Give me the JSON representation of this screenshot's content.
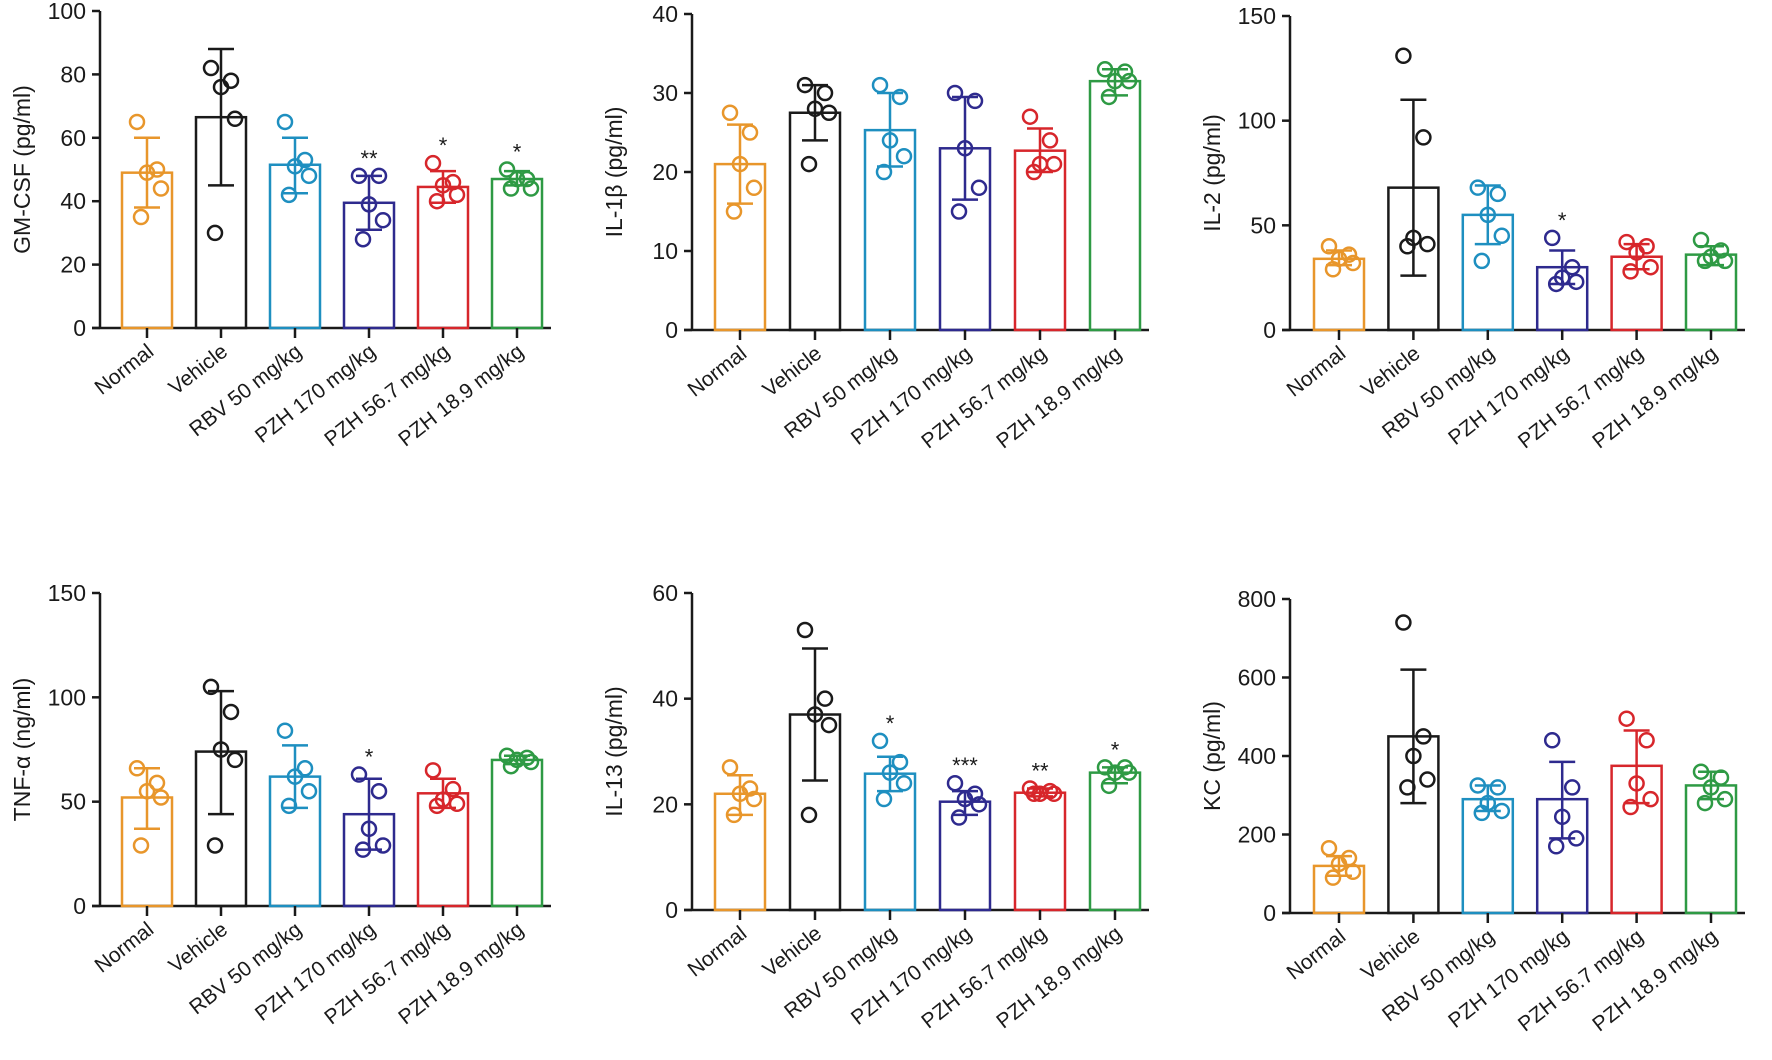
{
  "colors": [
    "#E8962B",
    "#1a1a1a",
    "#1E8FC0",
    "#2E2A8E",
    "#D7262B",
    "#2E9A44"
  ],
  "chart_data": [
    {
      "type": "bar",
      "title": "",
      "ylabel": "GM-CSF  (pg/ml)",
      "ylim": [
        0,
        100
      ],
      "yticks": [
        0,
        20,
        40,
        60,
        80,
        100
      ],
      "categories": [
        "Normal",
        "Vehicle",
        "RBV 50 mg/kg",
        "PZH 170 mg/kg",
        "PZH 56.7 mg/kg",
        "PZH 18.9 mg/kg"
      ],
      "means": [
        49,
        66.5,
        51.5,
        39.5,
        44.5,
        47
      ],
      "err_low": [
        38,
        45,
        42.5,
        31,
        39.5,
        45
      ],
      "err_high": [
        60,
        88,
        60,
        48,
        49.5,
        49.5
      ],
      "points": [
        [
          65,
          50,
          49,
          44,
          35
        ],
        [
          82,
          78,
          76,
          66,
          30
        ],
        [
          65,
          53,
          51,
          48,
          42
        ],
        [
          48,
          48,
          39,
          34,
          28
        ],
        [
          52,
          46,
          45,
          42,
          40
        ],
        [
          50,
          47,
          47,
          44,
          44
        ]
      ],
      "significance": [
        "",
        "",
        "",
        "**",
        "*",
        "*"
      ]
    },
    {
      "type": "bar",
      "title": "",
      "ylabel": "IL-1β  (pg/ml)",
      "ylim": [
        0,
        40
      ],
      "yticks": [
        0,
        10,
        20,
        30,
        40
      ],
      "categories": [
        "Normal",
        "Vehicle",
        "RBV 50 mg/kg",
        "PZH 170 mg/kg",
        "PZH 56.7 mg/kg",
        "PZH 18.9 mg/kg"
      ],
      "means": [
        21,
        27.5,
        25.3,
        23,
        22.7,
        31.5
      ],
      "err_low": [
        16,
        24,
        20.7,
        16.5,
        20,
        29.7
      ],
      "err_high": [
        26,
        31,
        30,
        29.5,
        25.5,
        33
      ],
      "points": [
        [
          27.5,
          25,
          21,
          18,
          15
        ],
        [
          31,
          30,
          28,
          27.5,
          21
        ],
        [
          31,
          29.5,
          24,
          22,
          20
        ],
        [
          30,
          29,
          23,
          18,
          15
        ],
        [
          27,
          24,
          21,
          21,
          20
        ],
        [
          33,
          32.7,
          31.5,
          31.5,
          29.5
        ]
      ],
      "significance": [
        "",
        "",
        "",
        "",
        "",
        ""
      ]
    },
    {
      "type": "bar",
      "title": "",
      "ylabel": "IL-2  (pg/ml)",
      "ylim": [
        0,
        150
      ],
      "yticks": [
        0,
        50,
        100,
        150
      ],
      "categories": [
        "Normal",
        "Vehicle",
        "RBV 50 mg/kg",
        "PZH 170 mg/kg",
        "PZH 56.7 mg/kg",
        "PZH 18.9 mg/kg"
      ],
      "means": [
        34,
        68,
        55,
        30,
        35,
        36
      ],
      "err_low": [
        31,
        26,
        41,
        22,
        29,
        31
      ],
      "err_high": [
        38,
        110,
        69,
        38,
        41,
        40
      ],
      "points": [
        [
          40,
          36,
          34,
          32,
          29
        ],
        [
          131,
          92,
          44,
          41,
          40
        ],
        [
          68,
          65,
          55,
          45,
          33
        ],
        [
          44,
          30,
          25,
          23,
          22
        ],
        [
          42,
          40,
          37,
          30,
          28
        ],
        [
          43,
          38,
          35,
          33,
          33
        ]
      ],
      "significance": [
        "",
        "",
        "",
        "*",
        "",
        ""
      ]
    },
    {
      "type": "bar",
      "title": "",
      "ylabel": "TNF-α  (ng/ml)",
      "ylim": [
        0,
        150
      ],
      "yticks": [
        0,
        50,
        100,
        150
      ],
      "categories": [
        "Normal",
        "Vehicle",
        "RBV 50 mg/kg",
        "PZH 170 mg/kg",
        "PZH 56.7 mg/kg",
        "PZH 18.9 mg/kg"
      ],
      "means": [
        52,
        74,
        62,
        44,
        54,
        70
      ],
      "err_low": [
        37,
        44,
        47,
        27,
        47,
        68
      ],
      "err_high": [
        66,
        103,
        77,
        61,
        61,
        72
      ],
      "points": [
        [
          66,
          59,
          55,
          52,
          29
        ],
        [
          105,
          93,
          75,
          70,
          29
        ],
        [
          84,
          66,
          62,
          55,
          48
        ],
        [
          63,
          55,
          37,
          29,
          27
        ],
        [
          65,
          56,
          51,
          49,
          48
        ],
        [
          72,
          71,
          70,
          69,
          67
        ]
      ],
      "significance": [
        "",
        "",
        "",
        "*",
        "",
        ""
      ]
    },
    {
      "type": "bar",
      "title": "",
      "ylabel": "IL-13  (pg/ml)",
      "ylim": [
        0,
        60
      ],
      "yticks": [
        0,
        20,
        40,
        60
      ],
      "categories": [
        "Normal",
        "Vehicle",
        "RBV 50 mg/kg",
        "PZH 170 mg/kg",
        "PZH 56.7 mg/kg",
        "PZH 18.9 mg/kg"
      ],
      "means": [
        22,
        37,
        25.8,
        20.5,
        22.2,
        26
      ],
      "err_low": [
        18,
        24.5,
        22.5,
        18,
        21.5,
        24
      ],
      "err_high": [
        25.5,
        49.5,
        29,
        22.5,
        23,
        27
      ],
      "points": [
        [
          27,
          23,
          22,
          21,
          18
        ],
        [
          53,
          40,
          37,
          35,
          18
        ],
        [
          32,
          28,
          26,
          24,
          21
        ],
        [
          24,
          22,
          21,
          20,
          17.5
        ],
        [
          23,
          22.5,
          22,
          22,
          22
        ],
        [
          27,
          27,
          26,
          26,
          23.5
        ]
      ],
      "significance": [
        "",
        "",
        "*",
        "***",
        "**",
        "*"
      ]
    },
    {
      "type": "bar",
      "title": "",
      "ylabel": "KC  (pg/ml)",
      "ylim": [
        0,
        800
      ],
      "yticks": [
        0,
        200,
        400,
        600,
        800
      ],
      "categories": [
        "Normal",
        "Vehicle",
        "RBV 50 mg/kg",
        "PZH 170 mg/kg",
        "PZH 56.7 mg/kg",
        "PZH 18.9 mg/kg"
      ],
      "means": [
        120,
        450,
        290,
        290,
        375,
        325
      ],
      "err_low": [
        95,
        280,
        260,
        190,
        280,
        290
      ],
      "err_high": [
        145,
        620,
        325,
        385,
        465,
        360
      ],
      "points": [
        [
          165,
          140,
          125,
          105,
          90
        ],
        [
          740,
          450,
          400,
          340,
          320
        ],
        [
          325,
          320,
          280,
          260,
          255
        ],
        [
          440,
          320,
          245,
          190,
          170
        ],
        [
          495,
          440,
          330,
          290,
          270
        ],
        [
          360,
          345,
          320,
          290,
          280
        ]
      ],
      "significance": [
        "",
        "",
        "",
        "",
        "",
        ""
      ]
    }
  ]
}
